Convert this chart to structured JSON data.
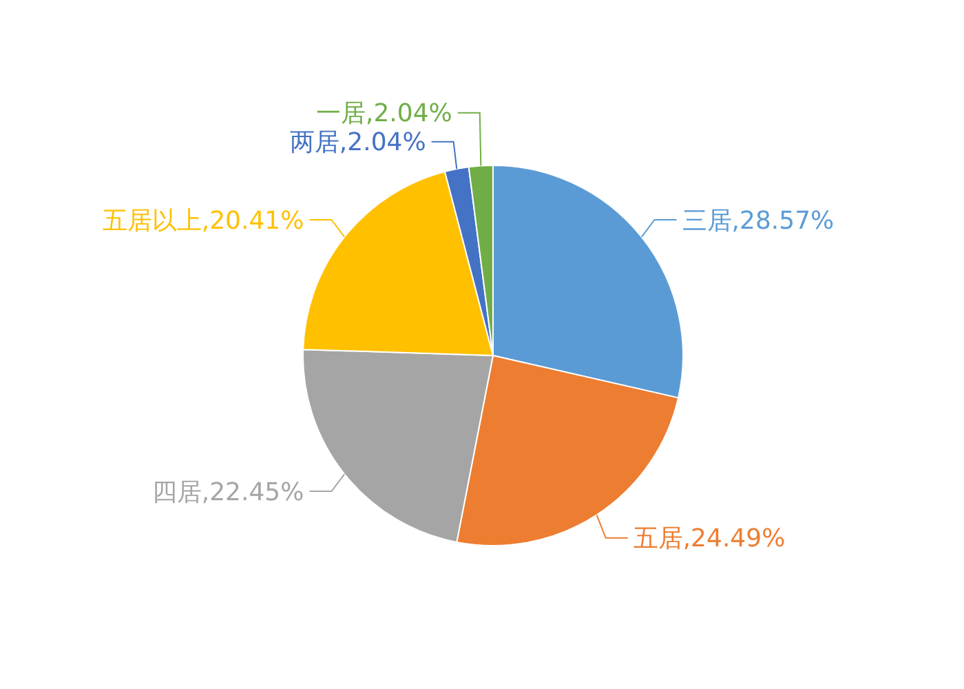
{
  "chart_data": {
    "type": "pie",
    "categories": [
      "三居",
      "五居",
      "四居",
      "五居以上",
      "两居",
      "一居"
    ],
    "values": [
      28.57,
      24.49,
      22.45,
      20.41,
      2.04,
      2.04
    ],
    "colors": [
      "#5b9bd5",
      "#ed7d31",
      "#a5a5a5",
      "#ffc000",
      "#4472c4",
      "#70ad47"
    ],
    "value_labels": [
      "28.57%",
      "24.49%",
      "22.45%",
      "20.41%",
      "2.04%",
      "2.04%"
    ]
  }
}
